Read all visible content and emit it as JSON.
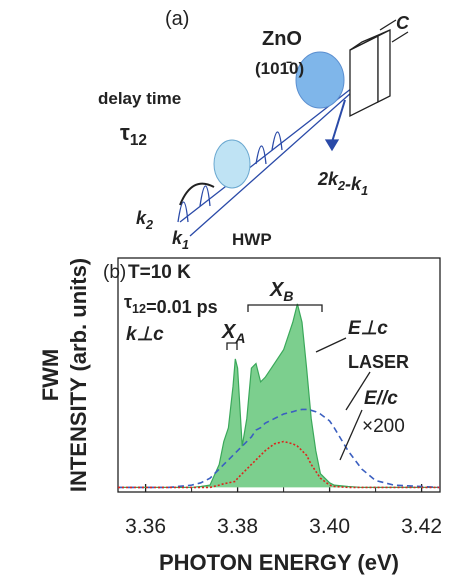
{
  "diagram": {
    "label": "(a)",
    "crystal": "ZnO",
    "plane": "(101̄0)",
    "axis": "C",
    "delay": "delay time",
    "tau": [
      {
        "text": "τ",
        "sub": "12"
      }
    ],
    "k2": [
      {
        "text": "k",
        "sub": "2"
      }
    ],
    "k1": [
      {
        "text": "k",
        "sub": "1"
      }
    ],
    "hwp": "HWP",
    "signal": [
      {
        "text": "2k",
        "sub": "2"
      },
      {
        "text": "-k",
        "sub": "1"
      }
    ]
  },
  "chart_data": {
    "type": "line",
    "x_label": "PHOTON ENERGY (eV)",
    "y_label": [
      "FWM",
      "INTENSITY (arb. units)"
    ],
    "x": [
      3.354,
      3.365,
      3.37,
      3.372,
      3.374,
      3.376,
      3.377,
      3.378,
      3.379,
      3.3795,
      3.38,
      3.381,
      3.382,
      3.383,
      3.384,
      3.385,
      3.386,
      3.388,
      3.39,
      3.392,
      3.393,
      3.394,
      3.395,
      3.396,
      3.397,
      3.398,
      3.4,
      3.401,
      3.404,
      3.407,
      3.41,
      3.414,
      3.424
    ],
    "series": [
      {
        "name": "E⊥c",
        "color": "#3aa85a",
        "fill": "#7ccf8e",
        "style": "area",
        "values": [
          0,
          0,
          0,
          0.02,
          0.05,
          0.5,
          1.0,
          1.3,
          2.2,
          2.8,
          2.6,
          0.9,
          1.5,
          2.6,
          2.7,
          2.3,
          2.4,
          2.7,
          3.0,
          3.6,
          4.0,
          3.6,
          2.6,
          1.5,
          0.8,
          0.3,
          0.1,
          0.05,
          0.02,
          0,
          0,
          0,
          0
        ]
      },
      {
        "name": "LASER",
        "color": "#3b5fc0",
        "style": "dashed",
        "values": [
          0,
          0,
          0.05,
          0.1,
          0.2,
          0.4,
          0.5,
          0.6,
          0.7,
          0.75,
          0.8,
          0.9,
          1.0,
          1.1,
          1.25,
          1.3,
          1.4,
          1.5,
          1.6,
          1.65,
          1.68,
          1.7,
          1.7,
          1.68,
          1.65,
          1.6,
          1.45,
          1.3,
          0.8,
          0.4,
          0.15,
          0.05,
          0
        ]
      },
      {
        "name": "E//c",
        "color": "#d9261c",
        "style": "dotted",
        "values": [
          0,
          0,
          0,
          0,
          0,
          0.05,
          0.08,
          0.1,
          0.12,
          0.13,
          0.2,
          0.3,
          0.4,
          0.5,
          0.6,
          0.7,
          0.8,
          0.95,
          1.0,
          0.95,
          0.9,
          0.8,
          0.7,
          0.5,
          0.35,
          0.2,
          0.05,
          0.02,
          0,
          0,
          0,
          0,
          0
        ]
      }
    ],
    "xlim": [
      3.354,
      3.424
    ],
    "ylim": [
      -0.1,
      5
    ],
    "xticks": [
      3.36,
      3.38,
      {
        "value": 3.4,
        "label": "3.40"
      },
      3.42
    ],
    "xminor": [
      3.37,
      3.39,
      3.41
    ],
    "annotations": {
      "panel": "(b)",
      "temp": "T=10 K",
      "delay": [
        {
          "text": "τ",
          "sub": "12"
        },
        {
          "text": "=0.01 ps"
        }
      ],
      "pol": "k⊥c",
      "xa": [
        {
          "text": "X",
          "sub": "A"
        }
      ],
      "xb": [
        {
          "text": "X",
          "sub": "B"
        }
      ],
      "scale": "×200"
    }
  }
}
